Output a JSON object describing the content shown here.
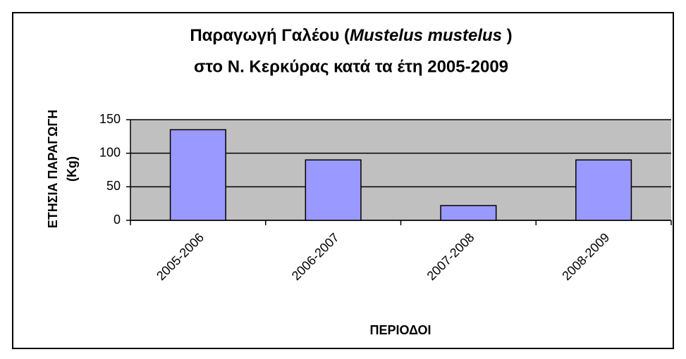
{
  "chart_data": {
    "type": "bar",
    "title": [
      "Παραγωγή Γαλέου (",
      "Mustelus mustelus",
      " )",
      "στο Ν. Κερκύρας κατά τα έτη 2005-2009"
    ],
    "ylabel": [
      "ΕΤΗΣΙΑ ΠΑΡΑΓΩΓΗ",
      "(Kg)"
    ],
    "xlabel": "ΠΕΡΙΟΔΟΙ",
    "categories": [
      "2005-2006",
      "2006-2007",
      "2007-2008",
      "2008-2009"
    ],
    "values": [
      135,
      90,
      22,
      90
    ],
    "color": "#9999ff",
    "ylim": [
      0,
      150
    ],
    "yticks": [
      0,
      50,
      100,
      150
    ],
    "grid": true
  }
}
